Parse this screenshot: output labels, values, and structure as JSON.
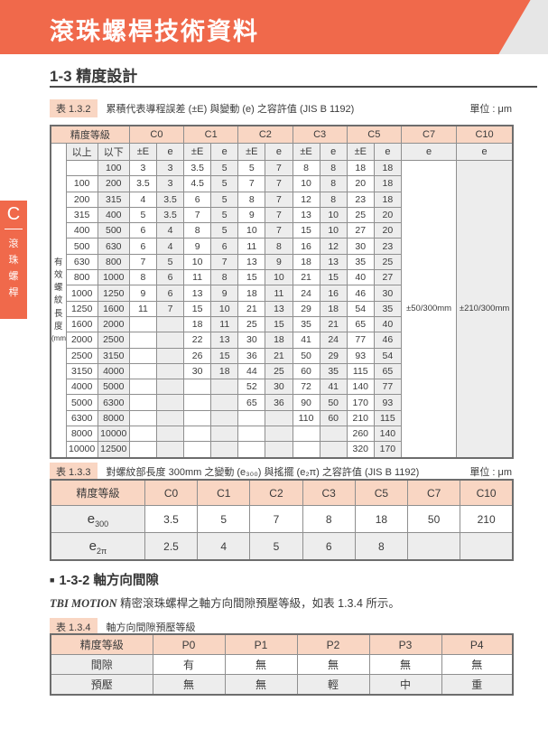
{
  "page": {
    "banner_title": "滾珠螺桿技術資料",
    "section_title": "1-3 精度設計",
    "section2_bullet": "■",
    "section2_title": "1-3-2 軸方向間隙",
    "paragraph_brand": "TBI MOTION",
    "paragraph_rest": " 精密滾珠螺桿之軸方向間隙預壓等級，如表 1.3.4 所示。"
  },
  "sidebar": {
    "tab_letter": "C",
    "tab_chars": [
      "滾",
      "珠",
      "螺",
      "桿"
    ]
  },
  "colors": {
    "accent_orange": "#F0694B",
    "header_peach": "#F9D6C3",
    "cell_gray": "#EDEDED",
    "corner_gray": "#E6E6E6"
  },
  "table132": {
    "badge": "表 1.3.2",
    "caption": "累積代表導程誤差 (±E) 與變動 (e) 之容許值 (JIS B 1192)",
    "unit": "單位 : μm",
    "corner_header": "精度等級",
    "grades": [
      "C0",
      "C1",
      "C2",
      "C3",
      "C5",
      "C7",
      "C10"
    ],
    "sub_headers": {
      "over": "以上",
      "under": "以下",
      "pe": "±E",
      "e": "e"
    },
    "axis_label_chars": [
      "有",
      "效",
      "螺",
      "紋",
      "長",
      "度"
    ],
    "axis_label_unit": "(mm)",
    "c7_value": "±50/300mm",
    "c10_value": "±210/300mm",
    "rows": [
      [
        "",
        "100",
        "3",
        "3",
        "3.5",
        "5",
        "5",
        "7",
        "8",
        "8",
        "18",
        "18"
      ],
      [
        "100",
        "200",
        "3.5",
        "3",
        "4.5",
        "5",
        "7",
        "7",
        "10",
        "8",
        "20",
        "18"
      ],
      [
        "200",
        "315",
        "4",
        "3.5",
        "6",
        "5",
        "8",
        "7",
        "12",
        "8",
        "23",
        "18"
      ],
      [
        "315",
        "400",
        "5",
        "3.5",
        "7",
        "5",
        "9",
        "7",
        "13",
        "10",
        "25",
        "20"
      ],
      [
        "400",
        "500",
        "6",
        "4",
        "8",
        "5",
        "10",
        "7",
        "15",
        "10",
        "27",
        "20"
      ],
      [
        "500",
        "630",
        "6",
        "4",
        "9",
        "6",
        "11",
        "8",
        "16",
        "12",
        "30",
        "23"
      ],
      [
        "630",
        "800",
        "7",
        "5",
        "10",
        "7",
        "13",
        "9",
        "18",
        "13",
        "35",
        "25"
      ],
      [
        "800",
        "1000",
        "8",
        "6",
        "11",
        "8",
        "15",
        "10",
        "21",
        "15",
        "40",
        "27"
      ],
      [
        "1000",
        "1250",
        "9",
        "6",
        "13",
        "9",
        "18",
        "11",
        "24",
        "16",
        "46",
        "30"
      ],
      [
        "1250",
        "1600",
        "11",
        "7",
        "15",
        "10",
        "21",
        "13",
        "29",
        "18",
        "54",
        "35"
      ],
      [
        "1600",
        "2000",
        "",
        "",
        "18",
        "11",
        "25",
        "15",
        "35",
        "21",
        "65",
        "40"
      ],
      [
        "2000",
        "2500",
        "",
        "",
        "22",
        "13",
        "30",
        "18",
        "41",
        "24",
        "77",
        "46"
      ],
      [
        "2500",
        "3150",
        "",
        "",
        "26",
        "15",
        "36",
        "21",
        "50",
        "29",
        "93",
        "54"
      ],
      [
        "3150",
        "4000",
        "",
        "",
        "30",
        "18",
        "44",
        "25",
        "60",
        "35",
        "115",
        "65"
      ],
      [
        "4000",
        "5000",
        "",
        "",
        "",
        "",
        "52",
        "30",
        "72",
        "41",
        "140",
        "77"
      ],
      [
        "5000",
        "6300",
        "",
        "",
        "",
        "",
        "65",
        "36",
        "90",
        "50",
        "170",
        "93"
      ],
      [
        "6300",
        "8000",
        "",
        "",
        "",
        "",
        "",
        "",
        "110",
        "60",
        "210",
        "115"
      ],
      [
        "8000",
        "10000",
        "",
        "",
        "",
        "",
        "",
        "",
        "",
        "",
        "260",
        "140"
      ],
      [
        "10000",
        "12500",
        "",
        "",
        "",
        "",
        "",
        "",
        "",
        "",
        "320",
        "170"
      ]
    ]
  },
  "table133": {
    "badge": "表 1.3.3",
    "caption": "對螺紋部長度 300mm 之變動 (e₃₀₀) 與搖擺 (e₂π) 之容許值 (JIS B 1192)",
    "unit": "單位 : μm",
    "header": [
      "精度等級",
      "C0",
      "C1",
      "C2",
      "C3",
      "C5",
      "C7",
      "C10"
    ],
    "rows": [
      {
        "label_main": "e",
        "label_sub": "300",
        "values": [
          "3.5",
          "5",
          "7",
          "8",
          "18",
          "50",
          "210"
        ]
      },
      {
        "label_main": "e",
        "label_sub": "2π",
        "values": [
          "2.5",
          "4",
          "5",
          "6",
          "8",
          "",
          ""
        ]
      }
    ]
  },
  "table134": {
    "badge": "表 1.3.4",
    "caption": "軸方向間隙預壓等級",
    "header": [
      "精度等級",
      "P0",
      "P1",
      "P2",
      "P3",
      "P4"
    ],
    "rows": [
      {
        "label": "間隙",
        "values": [
          "有",
          "無",
          "無",
          "無",
          "無"
        ]
      },
      {
        "label": "預壓",
        "values": [
          "無",
          "無",
          "輕",
          "中",
          "重"
        ]
      }
    ]
  }
}
